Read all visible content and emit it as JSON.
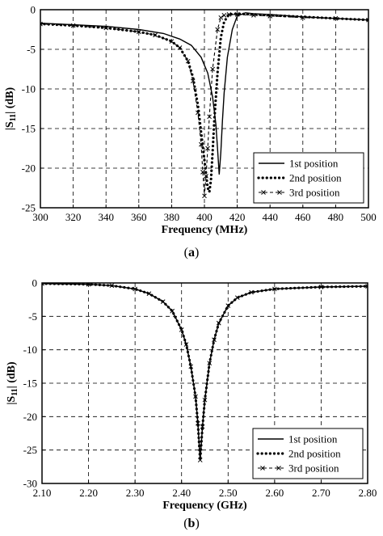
{
  "figure": {
    "panel_a_label": "a",
    "panel_b_label": "b"
  },
  "chart_data": [
    {
      "type": "line",
      "panel": "a",
      "title": "",
      "xlabel": "Frequency (MHz)",
      "ylabel_prefix": "|S",
      "ylabel_sub": "11",
      "ylabel_suffix": "| (dB)",
      "xlim": [
        300,
        500
      ],
      "ylim": [
        -25,
        0
      ],
      "xticks": [
        300,
        320,
        340,
        360,
        380,
        400,
        420,
        440,
        460,
        480,
        500
      ],
      "yticks": [
        0,
        -5,
        -10,
        -15,
        -20,
        -25
      ],
      "grid": "dashed",
      "legend_placement": "bottom-right",
      "series": [
        {
          "name": "1st position",
          "style": "solid",
          "x": [
            300,
            320,
            340,
            360,
            375,
            385,
            392,
            398,
            402,
            405,
            407,
            408,
            409,
            410,
            411,
            412,
            414,
            417,
            420,
            425,
            430,
            440,
            460,
            480,
            500
          ],
          "y": [
            -1.7,
            -1.9,
            -2.1,
            -2.5,
            -3.0,
            -3.7,
            -4.5,
            -6.0,
            -8.0,
            -11.0,
            -14.5,
            -17.5,
            -20.8,
            -18.0,
            -14.0,
            -10.5,
            -6.0,
            -2.5,
            -0.8,
            -0.4,
            -0.5,
            -0.6,
            -0.9,
            -1.1,
            -1.3
          ]
        },
        {
          "name": "2nd position",
          "style": "dotted",
          "x": [
            300,
            320,
            340,
            360,
            370,
            380,
            385,
            390,
            393,
            396,
            398,
            400,
            402,
            403,
            404,
            405,
            406,
            408,
            410,
            412,
            415,
            420,
            430,
            440,
            460,
            480,
            500
          ],
          "y": [
            -1.8,
            -2.0,
            -2.3,
            -2.8,
            -3.2,
            -4.0,
            -4.8,
            -6.5,
            -8.5,
            -12.0,
            -15.5,
            -19.0,
            -22.5,
            -23.0,
            -21.5,
            -18.0,
            -14.0,
            -8.0,
            -3.5,
            -1.5,
            -0.6,
            -0.5,
            -0.6,
            -0.7,
            -0.9,
            -1.1,
            -1.3
          ]
        },
        {
          "name": "3rd position",
          "style": "dash-cross",
          "x": [
            300,
            320,
            340,
            360,
            370,
            380,
            385,
            390,
            393,
            396,
            398,
            399,
            400,
            401,
            402,
            403,
            405,
            408,
            410,
            412,
            415,
            420,
            430,
            440,
            460,
            480,
            500
          ],
          "y": [
            -1.8,
            -2.0,
            -2.3,
            -2.8,
            -3.2,
            -4.0,
            -4.8,
            -6.5,
            -9.0,
            -13.0,
            -17.0,
            -20.5,
            -23.5,
            -21.0,
            -17.5,
            -13.5,
            -7.5,
            -2.5,
            -1.0,
            -0.7,
            -0.6,
            -0.6,
            -0.7,
            -0.8,
            -1.0,
            -1.1,
            -1.3
          ]
        }
      ]
    },
    {
      "type": "line",
      "panel": "b",
      "title": "",
      "xlabel": "Frequency (GHz)",
      "ylabel_prefix": "|S",
      "ylabel_sub": "11",
      "ylabel_suffix": "| (dB)",
      "xlim": [
        2.1,
        2.8
      ],
      "ylim": [
        -30,
        0
      ],
      "xticks": [
        "2.10",
        "2.20",
        "2.30",
        "2.40",
        "2.50",
        "2.60",
        "2.70",
        "2.80"
      ],
      "yticks": [
        0,
        -5,
        -10,
        -15,
        -20,
        -25,
        -30
      ],
      "grid": "dashed",
      "legend_placement": "bottom-right",
      "series": [
        {
          "name": "1st position",
          "style": "solid",
          "x": [
            2.1,
            2.2,
            2.25,
            2.3,
            2.33,
            2.36,
            2.38,
            2.4,
            2.41,
            2.42,
            2.43,
            2.435,
            2.44,
            2.445,
            2.45,
            2.46,
            2.47,
            2.48,
            2.5,
            2.52,
            2.55,
            2.6,
            2.7,
            2.8
          ],
          "y": [
            -0.1,
            -0.2,
            -0.4,
            -0.9,
            -1.6,
            -2.8,
            -4.2,
            -7.0,
            -9.2,
            -12.5,
            -17.0,
            -21.0,
            -26.5,
            -21.5,
            -17.5,
            -12.0,
            -8.5,
            -6.0,
            -3.4,
            -2.2,
            -1.4,
            -0.9,
            -0.6,
            -0.5
          ]
        },
        {
          "name": "2nd position",
          "style": "dotted",
          "x": [
            2.1,
            2.2,
            2.25,
            2.3,
            2.33,
            2.36,
            2.38,
            2.4,
            2.41,
            2.42,
            2.43,
            2.435,
            2.44,
            2.445,
            2.45,
            2.46,
            2.47,
            2.48,
            2.5,
            2.52,
            2.55,
            2.6,
            2.7,
            2.8
          ],
          "y": [
            -0.1,
            -0.2,
            -0.4,
            -0.9,
            -1.6,
            -2.8,
            -4.2,
            -7.0,
            -9.2,
            -12.5,
            -17.0,
            -21.0,
            -26.5,
            -21.5,
            -17.5,
            -12.0,
            -8.5,
            -6.0,
            -3.4,
            -2.2,
            -1.4,
            -0.9,
            -0.6,
            -0.5
          ]
        },
        {
          "name": "3rd position",
          "style": "dash-cross",
          "x": [
            2.1,
            2.2,
            2.25,
            2.3,
            2.33,
            2.36,
            2.38,
            2.4,
            2.41,
            2.42,
            2.43,
            2.435,
            2.44,
            2.445,
            2.45,
            2.46,
            2.47,
            2.48,
            2.5,
            2.52,
            2.55,
            2.6,
            2.7,
            2.8
          ],
          "y": [
            -0.1,
            -0.2,
            -0.4,
            -0.9,
            -1.6,
            -2.8,
            -4.2,
            -7.0,
            -9.2,
            -12.5,
            -17.0,
            -21.0,
            -26.5,
            -21.5,
            -17.5,
            -12.0,
            -8.5,
            -6.0,
            -3.4,
            -2.2,
            -1.4,
            -0.9,
            -0.6,
            -0.5
          ]
        }
      ]
    }
  ]
}
